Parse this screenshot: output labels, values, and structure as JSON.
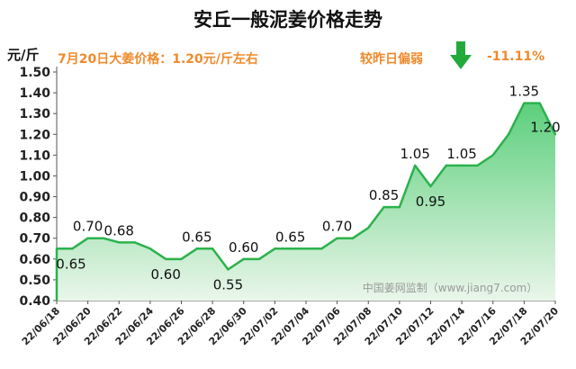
{
  "title": "安丘一般泥姜价格走势",
  "unit": "元/斤",
  "subtitle": "7月20日大姜价格：1.20元/斤左右",
  "compare_label": "较昨日偏弱",
  "change_pct": "-11.11%",
  "watermark": "中国姜网监制（www.jiang7.com）",
  "colors": {
    "line": "#2bb24c",
    "fill_top": "#6fd08a",
    "fill_bottom": "#e6f5e6",
    "accent": "#f08a2c",
    "arrow": "#22aa3a"
  },
  "chart_data": {
    "type": "area",
    "x": [
      "22/06/18",
      "22/06/19",
      "22/06/20",
      "22/06/21",
      "22/06/22",
      "22/06/23",
      "22/06/24",
      "22/06/25",
      "22/06/26",
      "22/06/27",
      "22/06/28",
      "22/06/29",
      "22/06/30",
      "22/07/01",
      "22/07/02",
      "22/07/03",
      "22/07/04",
      "22/07/05",
      "22/07/06",
      "22/07/07",
      "22/07/08",
      "22/07/09",
      "22/07/10",
      "22/07/11",
      "22/07/12",
      "22/07/13",
      "22/07/14",
      "22/07/15",
      "22/07/16",
      "22/07/17",
      "22/07/18",
      "22/07/19",
      "22/07/20"
    ],
    "values": [
      0.65,
      0.65,
      0.7,
      0.7,
      0.68,
      0.68,
      0.65,
      0.6,
      0.6,
      0.65,
      0.65,
      0.55,
      0.6,
      0.6,
      0.65,
      0.65,
      0.65,
      0.65,
      0.7,
      0.7,
      0.75,
      0.85,
      0.85,
      1.05,
      0.95,
      1.05,
      1.05,
      1.05,
      1.1,
      1.2,
      1.35,
      1.35,
      1.2
    ],
    "data_labels": [
      {
        "i": 0,
        "text": "0.65",
        "pos": "below"
      },
      {
        "i": 2,
        "text": "0.70",
        "pos": "above"
      },
      {
        "i": 4,
        "text": "0.68",
        "pos": "above"
      },
      {
        "i": 7,
        "text": "0.60",
        "pos": "below"
      },
      {
        "i": 9,
        "text": "0.65",
        "pos": "above"
      },
      {
        "i": 11,
        "text": "0.55",
        "pos": "below"
      },
      {
        "i": 12,
        "text": "0.60",
        "pos": "above"
      },
      {
        "i": 15,
        "text": "0.65",
        "pos": "above"
      },
      {
        "i": 18,
        "text": "0.70",
        "pos": "above"
      },
      {
        "i": 21,
        "text": "0.85",
        "pos": "above"
      },
      {
        "i": 23,
        "text": "1.05",
        "pos": "above"
      },
      {
        "i": 24,
        "text": "0.95",
        "pos": "below"
      },
      {
        "i": 26,
        "text": "1.05",
        "pos": "above"
      },
      {
        "i": 30,
        "text": "1.35",
        "pos": "above"
      },
      {
        "i": 32,
        "text": "1.20",
        "pos": "left"
      }
    ],
    "x_tick_labels": [
      "22/06/18",
      "22/06/20",
      "22/06/22",
      "22/06/24",
      "22/06/26",
      "22/06/28",
      "22/06/30",
      "22/07/02",
      "22/07/04",
      "22/07/06",
      "22/07/08",
      "22/07/10",
      "22/07/12",
      "22/07/14",
      "22/07/16",
      "22/07/18",
      "22/07/20"
    ],
    "y_tick_labels": [
      "0.40",
      "0.50",
      "0.60",
      "0.70",
      "0.80",
      "0.90",
      "1.00",
      "1.10",
      "1.20",
      "1.30",
      "1.40",
      "1.50"
    ],
    "ylim": [
      0.4,
      1.5
    ],
    "grid": false,
    "legend": "none"
  }
}
